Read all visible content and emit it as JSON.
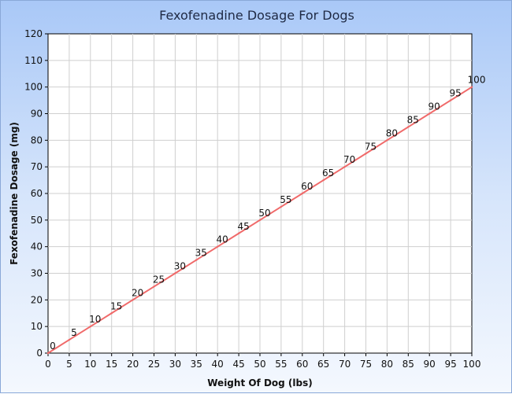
{
  "chart_data": {
    "type": "line",
    "title": "Fexofenadine Dosage For Dogs",
    "xlabel": "Weight Of Dog (lbs)",
    "ylabel": "Fexofenadine Dosage (mg)",
    "xlim": [
      0,
      100
    ],
    "ylim": [
      0,
      120
    ],
    "x_ticks": [
      0,
      5,
      10,
      15,
      20,
      25,
      30,
      35,
      40,
      45,
      50,
      55,
      60,
      65,
      70,
      75,
      80,
      85,
      90,
      95,
      100
    ],
    "y_ticks": [
      0,
      10,
      20,
      30,
      40,
      50,
      60,
      70,
      80,
      90,
      100,
      110,
      120
    ],
    "grid": true,
    "legend": "none",
    "colors": {
      "series": "#f06a6a",
      "grid": "#cfcfcf",
      "background_top": "#a9c8f7",
      "background_bottom": "#f4f8fe"
    },
    "series": [
      {
        "x": [
          0,
          5,
          10,
          15,
          20,
          25,
          30,
          35,
          40,
          45,
          50,
          55,
          60,
          65,
          70,
          75,
          80,
          85,
          90,
          95,
          100
        ],
        "y": [
          0,
          5,
          10,
          15,
          20,
          25,
          30,
          35,
          40,
          45,
          50,
          55,
          60,
          65,
          70,
          75,
          80,
          85,
          90,
          95,
          100
        ],
        "data_labels": [
          "0",
          "5",
          "10",
          "15",
          "20",
          "25",
          "30",
          "35",
          "40",
          "45",
          "50",
          "55",
          "60",
          "65",
          "70",
          "75",
          "80",
          "85",
          "90",
          "95",
          "100"
        ]
      }
    ]
  }
}
